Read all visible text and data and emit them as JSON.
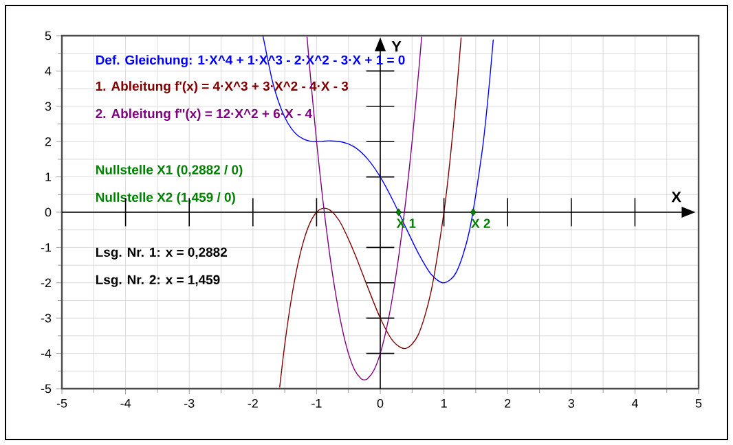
{
  "chart_data": {
    "type": "line",
    "xlabel": "X",
    "ylabel": "Y",
    "xlim": [
      -5,
      5
    ],
    "ylim": [
      -5,
      5
    ],
    "xticks": [
      -5,
      -4,
      -3,
      -2,
      -1,
      0,
      1,
      2,
      3,
      4,
      5
    ],
    "yticks": [
      -5,
      -4,
      -3,
      -2,
      -1,
      0,
      1,
      2,
      3,
      4,
      5
    ],
    "grid": true,
    "series": [
      {
        "name": "Def. Gleichung: 1·X^4 + 1·X^3 - 2·X^2 - 3·X + 1 = 0",
        "color": "#0000ff",
        "x": [
          -1.84,
          -1.7,
          -1.6,
          -1.5,
          -1.4,
          -1.3,
          -1.2,
          -1.1,
          -1.0,
          -0.9,
          -0.8,
          -0.6,
          -0.4,
          -0.2,
          0,
          0.2,
          0.4,
          0.6,
          0.8,
          1.0,
          1.2,
          1.4,
          1.6,
          1.7,
          1.775
        ],
        "values": [
          4.98,
          3.76,
          3.14,
          2.69,
          2.38,
          2.18,
          2.07,
          2.01,
          2.0,
          2.01,
          2.02,
          1.99,
          1.84,
          1.51,
          1.0,
          0.33,
          -0.43,
          -1.17,
          -1.76,
          -2.0,
          -1.68,
          -0.53,
          1.73,
          3.39,
          4.89
        ]
      },
      {
        "name": "1. Ableitung f'(x) = 4·X^3 + 3·X^2 - 4·X - 3",
        "color": "#800000",
        "x": [
          -1.58,
          -1.5,
          -1.4,
          -1.3,
          -1.2,
          -1.1,
          -1.0,
          -0.9,
          -0.8,
          -0.7,
          -0.6,
          -0.4,
          -0.2,
          0,
          0.2,
          0.4,
          0.6,
          0.8,
          1.0,
          1.1,
          1.2,
          1.27
        ],
        "values": [
          -4.97,
          -3.75,
          -2.5,
          -1.52,
          -0.79,
          -0.29,
          0.0,
          0.11,
          0.07,
          -0.1,
          -0.38,
          -1.18,
          -2.11,
          -3.0,
          -3.65,
          -3.86,
          -3.46,
          -2.23,
          0.0,
          1.55,
          3.43,
          4.95
        ]
      },
      {
        "name": "2. Ableitung f''(x) = 12·X^2 + 6·X - 4",
        "color": "#800080",
        "x": [
          -1.15,
          -1.1,
          -1.0,
          -0.9,
          -0.8,
          -0.7,
          -0.6,
          -0.5,
          -0.4,
          -0.3,
          -0.25,
          -0.2,
          -0.1,
          0,
          0.1,
          0.2,
          0.3,
          0.4,
          0.5,
          0.6,
          0.65
        ],
        "values": [
          4.97,
          3.92,
          2.0,
          0.32,
          -1.12,
          -2.32,
          -3.28,
          -4.0,
          -4.48,
          -4.72,
          -4.75,
          -4.72,
          -4.48,
          -4.0,
          -3.28,
          -2.32,
          -1.12,
          0.32,
          2.0,
          3.92,
          4.97
        ]
      },
      {
        "type": "scatter",
        "color": "#008000",
        "marker": "diamond",
        "x": [
          0.2882,
          1.459
        ],
        "values": [
          0,
          0
        ]
      }
    ],
    "annotations": [
      "Nullstelle X1 (0,2882 / 0)",
      "Nullstelle X2 (1,459 / 0)",
      "Lsg. Nr. 1: x = 0,2882",
      "Lsg. Nr. 2: x = 1,459",
      {
        "text": "X 1",
        "x": 0.2882,
        "y": 0
      },
      {
        "text": "X 2",
        "x": 1.459,
        "y": 0
      }
    ]
  }
}
